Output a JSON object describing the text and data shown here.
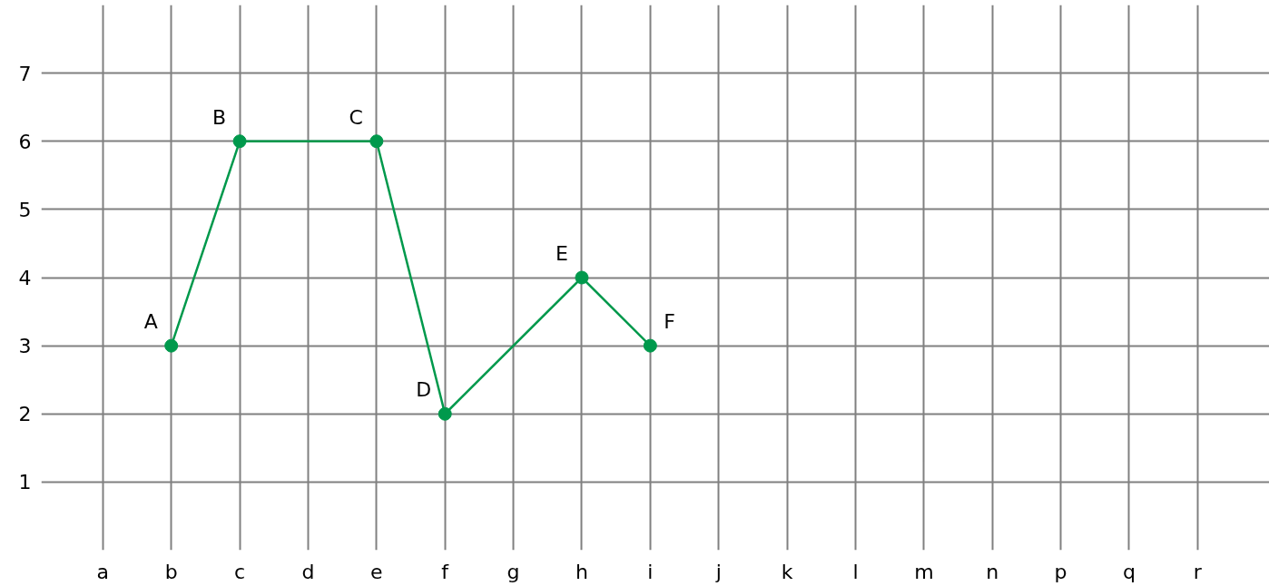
{
  "chart_data": {
    "type": "line",
    "categories": [
      "a",
      "b",
      "c",
      "d",
      "e",
      "f",
      "g",
      "h",
      "i",
      "j",
      "k",
      "l",
      "m",
      "n",
      "p",
      "q",
      "r"
    ],
    "series": [
      {
        "color": "#00994c",
        "values": [
          null,
          3,
          6,
          null,
          6,
          2,
          null,
          4,
          3,
          null,
          null,
          null,
          null,
          null,
          null,
          null,
          null
        ]
      }
    ],
    "ylim": [
      0,
      8
    ],
    "yticks": [
      1,
      2,
      3,
      4,
      5,
      6,
      7
    ],
    "grid": true,
    "marker": "circle",
    "line_style": "solid",
    "annotations": [
      {
        "text": "A",
        "x": "b",
        "y": 3
      },
      {
        "text": "B",
        "x": "c",
        "y": 6
      },
      {
        "text": "C",
        "x": "e",
        "y": 6
      },
      {
        "text": "D",
        "x": "f",
        "y": 2
      },
      {
        "text": "E",
        "x": "h",
        "y": 4
      },
      {
        "text": "F",
        "x": "i",
        "y": 3
      }
    ]
  }
}
